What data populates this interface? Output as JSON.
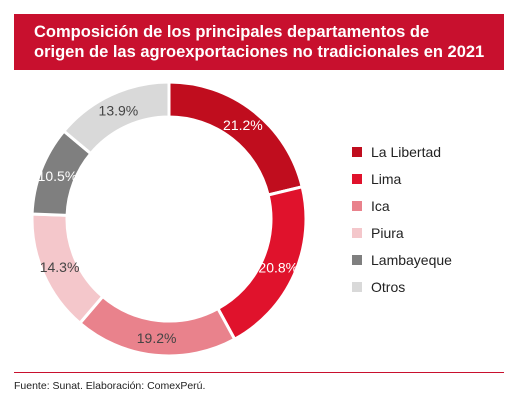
{
  "title_line1": "Composición de los principales departamentos de",
  "title_line2": "origen de las agroexportaciones no tradicionales en 2021",
  "source": "Fuente: Sunat. Elaboración: ComexPerú.",
  "colors": {
    "title_band": "#c8102e",
    "rule": "#c8102e"
  },
  "chart_data": {
    "type": "pie",
    "donut": true,
    "start": "12 o'clock, clockwise",
    "legend_position": "right",
    "categories": [
      "La Libertad",
      "Lima",
      "Ica",
      "Piura",
      "Lambayeque",
      "Otros"
    ],
    "values": [
      21.2,
      20.8,
      19.2,
      14.3,
      10.5,
      13.9
    ],
    "labels": [
      "21.2%",
      "20.8%",
      "19.2%",
      "14.3%",
      "10.5%",
      "13.9%"
    ],
    "colors": [
      "#c00d1e",
      "#e0122c",
      "#e9828c",
      "#f4c7cb",
      "#7f7f7f",
      "#d9d9d9"
    ],
    "label_colors": [
      "#ffffff",
      "#ffffff",
      "#444444",
      "#444444",
      "#ffffff",
      "#444444"
    ]
  }
}
